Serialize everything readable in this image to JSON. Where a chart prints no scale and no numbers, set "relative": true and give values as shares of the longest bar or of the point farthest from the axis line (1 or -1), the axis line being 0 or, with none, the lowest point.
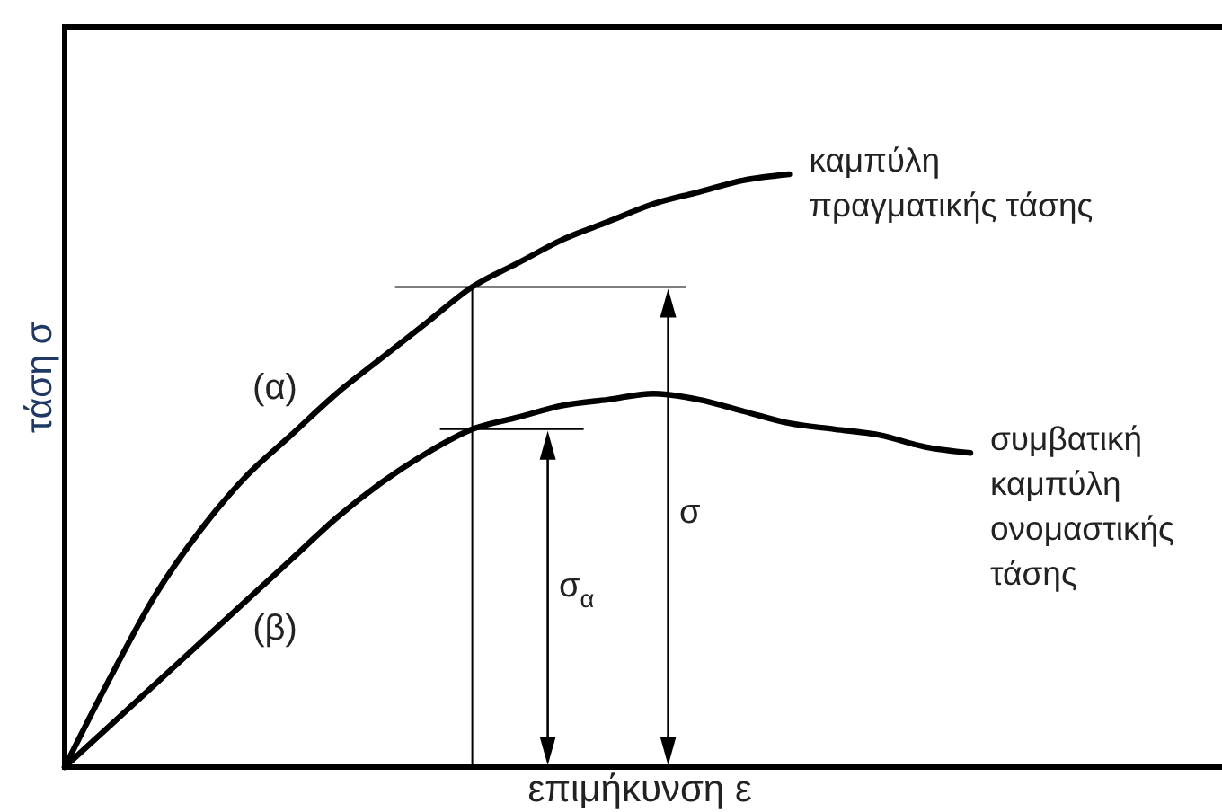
{
  "chart_data": {
    "type": "line",
    "relative": true,
    "xlabel": "επιμήκυνση ε",
    "ylabel": "τάση σ",
    "categories": [
      null,
      null,
      null,
      null,
      null,
      null,
      null,
      null,
      null,
      null,
      null,
      null,
      null,
      null,
      null,
      null,
      null,
      null,
      null,
      null,
      null
    ],
    "series": [
      {
        "name": "καμπύλη\nπραγματικής τάσης",
        "color": "#000000",
        "values": [
          0,
          0.15,
          0.29,
          0.4,
          0.49,
          0.56,
          0.63,
          0.69,
          0.75,
          0.81,
          0.85,
          0.89,
          0.92,
          0.95,
          0.97,
          0.99,
          1,
          null,
          null,
          null,
          null
        ]
      },
      {
        "name": "συμβατική\nκαμπύλη\nονομαστικής\nτάσης",
        "color": "#000000",
        "values": [
          0,
          0.07,
          0.14,
          0.21,
          0.28,
          0.35,
          0.42,
          0.48,
          0.53,
          0.57,
          0.59,
          0.61,
          0.62,
          0.63,
          0.62,
          0.6,
          0.58,
          0.57,
          0.56,
          0.54,
          0.53
        ]
      }
    ],
    "ref_lines": [
      {
        "axis": "y",
        "value": 0.81
      },
      {
        "axis": "y",
        "value": 0.57
      }
    ],
    "annotations": [
      "(α)",
      "(β)",
      "σ",
      "σ$_{α}$"
    ]
  }
}
